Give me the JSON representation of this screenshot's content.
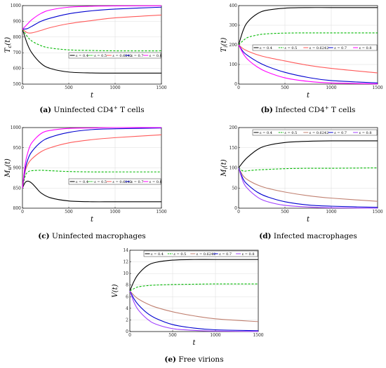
{
  "chart_data": [
    {
      "id": "a",
      "type": "line",
      "caption_letter": "(a)",
      "caption": " Uninfected CD4",
      "caption_sup": "+",
      "caption_tail": " T cells",
      "xlabel": "t",
      "ylabel": "T_c(t)",
      "xlim": [
        0,
        1500
      ],
      "ylim": [
        500,
        1000
      ],
      "xticks": [
        0,
        500,
        1000,
        1500
      ],
      "yticks": [
        500,
        600,
        700,
        800,
        900,
        1000
      ],
      "legend_position": "right",
      "grid": true,
      "series": [
        {
          "name": "ε = 0.4",
          "color": "#000000",
          "dash": "solid",
          "x": [
            0,
            50,
            100,
            200,
            300,
            500,
            750,
            1000,
            1500
          ],
          "y": [
            850,
            760,
            700,
            632,
            600,
            577,
            571,
            570,
            570
          ]
        },
        {
          "name": "ε = 0.5",
          "color": "#00b800",
          "dash": "dashed",
          "x": [
            0,
            50,
            100,
            200,
            300,
            500,
            750,
            1000,
            1500
          ],
          "y": [
            850,
            805,
            775,
            745,
            730,
            718,
            714,
            712,
            712
          ]
        },
        {
          "name": "ε = 0.6242",
          "color": "#ff5a5a",
          "dash": "solid",
          "x": [
            0,
            50,
            100,
            200,
            300,
            500,
            750,
            1000,
            1500
          ],
          "y": [
            850,
            828,
            826,
            842,
            860,
            885,
            905,
            922,
            940
          ]
        },
        {
          "name": "ε = 0.7",
          "color": "#0000d0",
          "dash": "solid",
          "x": [
            0,
            50,
            100,
            200,
            300,
            500,
            750,
            1000,
            1500
          ],
          "y": [
            850,
            853,
            868,
            900,
            920,
            948,
            967,
            978,
            990
          ]
        },
        {
          "name": "ε = 0.8",
          "color": "#ff00ff",
          "dash": "solid",
          "x": [
            0,
            50,
            100,
            200,
            300,
            500,
            750,
            1000,
            1500
          ],
          "y": [
            850,
            880,
            910,
            950,
            972,
            990,
            996,
            998,
            999
          ]
        }
      ]
    },
    {
      "id": "b",
      "type": "line",
      "caption_letter": "(b)",
      "caption": " Infected CD4",
      "caption_sup": "+",
      "caption_tail": " T cells",
      "xlabel": "t",
      "ylabel": "T_i(t)",
      "xlim": [
        0,
        1500
      ],
      "ylim": [
        0,
        400
      ],
      "xticks": [
        0,
        500,
        1000,
        1500
      ],
      "yticks": [
        0,
        100,
        200,
        300,
        400
      ],
      "legend_position": "middle",
      "grid": true,
      "series": [
        {
          "name": "ε = 0.4",
          "color": "#000000",
          "dash": "solid",
          "x": [
            0,
            50,
            100,
            200,
            300,
            500,
            750,
            1000,
            1500
          ],
          "y": [
            200,
            275,
            318,
            358,
            376,
            387,
            390,
            390,
            390
          ]
        },
        {
          "name": "ε = 0.5",
          "color": "#00b800",
          "dash": "dashed",
          "x": [
            0,
            50,
            100,
            200,
            300,
            500,
            750,
            1000,
            1500
          ],
          "y": [
            200,
            222,
            238,
            250,
            256,
            260,
            261,
            261,
            261
          ]
        },
        {
          "name": "ε = 0.6242",
          "color": "#ff5a5a",
          "dash": "solid",
          "x": [
            0,
            50,
            100,
            200,
            300,
            500,
            750,
            1000,
            1500
          ],
          "y": [
            200,
            180,
            168,
            150,
            137,
            118,
            96,
            80,
            57
          ]
        },
        {
          "name": "ε = 0.7",
          "color": "#0000d0",
          "dash": "solid",
          "x": [
            0,
            50,
            100,
            200,
            300,
            500,
            750,
            1000,
            1500
          ],
          "y": [
            200,
            165,
            145,
            115,
            92,
            60,
            34,
            18,
            6
          ]
        },
        {
          "name": "ε = 0.8",
          "color": "#ff00ff",
          "dash": "solid",
          "x": [
            0,
            50,
            100,
            200,
            300,
            500,
            750,
            1000,
            1500
          ],
          "y": [
            200,
            155,
            125,
            88,
            63,
            32,
            14,
            6,
            1
          ]
        }
      ]
    },
    {
      "id": "c",
      "type": "line",
      "caption_letter": "(c)",
      "caption": " Uninfected macrophages",
      "caption_sup": "",
      "caption_tail": "",
      "xlabel": "t",
      "ylabel": "M_u(t)",
      "xlim": [
        0,
        1500
      ],
      "ylim": [
        800,
        1000
      ],
      "xticks": [
        0,
        500,
        1000,
        1500
      ],
      "yticks": [
        800,
        850,
        900,
        950,
        1000
      ],
      "legend_position": "right",
      "grid": true,
      "series": [
        {
          "name": "ε = 0.4",
          "color": "#000000",
          "dash": "solid",
          "x": [
            0,
            30,
            60,
            100,
            150,
            200,
            300,
            500,
            750,
            1000,
            1500
          ],
          "y": [
            850,
            864,
            867,
            862,
            850,
            838,
            826,
            818,
            816,
            816,
            816
          ]
        },
        {
          "name": "ε = 0.5",
          "color": "#00b800",
          "dash": "dashed",
          "x": [
            0,
            30,
            60,
            100,
            200,
            300,
            500,
            750,
            1000,
            1500
          ],
          "y": [
            850,
            880,
            890,
            893,
            894,
            893,
            891,
            890,
            890,
            890
          ]
        },
        {
          "name": "ε = 0.6242",
          "color": "#ff5a5a",
          "dash": "solid",
          "x": [
            0,
            30,
            60,
            100,
            200,
            300,
            500,
            750,
            1000,
            1500
          ],
          "y": [
            850,
            892,
            910,
            922,
            940,
            950,
            962,
            970,
            975,
            982
          ]
        },
        {
          "name": "ε = 0.7",
          "color": "#0000d0",
          "dash": "solid",
          "x": [
            0,
            30,
            60,
            100,
            200,
            300,
            500,
            750,
            1000,
            1500
          ],
          "y": [
            850,
            898,
            922,
            940,
            964,
            976,
            988,
            995,
            997,
            999
          ]
        },
        {
          "name": "ε = 0.8",
          "color": "#ff00ff",
          "dash": "solid",
          "x": [
            0,
            30,
            60,
            100,
            200,
            300,
            500,
            750,
            1000,
            1500
          ],
          "y": [
            850,
            910,
            940,
            962,
            985,
            993,
            998,
            999,
            1000,
            1000
          ]
        }
      ]
    },
    {
      "id": "d",
      "type": "line",
      "caption_letter": "(d)",
      "caption": " Infected macrophages",
      "caption_sup": "",
      "caption_tail": "",
      "xlabel": "t",
      "ylabel": "M_i(t)",
      "xlim": [
        0,
        1500
      ],
      "ylim": [
        0,
        200
      ],
      "xticks": [
        0,
        500,
        1000,
        1500
      ],
      "yticks": [
        0,
        50,
        100,
        150,
        200
      ],
      "legend_position": "top",
      "grid": true,
      "series": [
        {
          "name": "ε = 0.4",
          "color": "#000000",
          "dash": "solid",
          "x": [
            0,
            50,
            100,
            200,
            300,
            500,
            750,
            1000,
            1500
          ],
          "y": [
            100,
            115,
            127,
            145,
            155,
            163,
            166,
            167,
            167
          ]
        },
        {
          "name": "ε = 0.5",
          "color": "#00b800",
          "dash": "dashed",
          "x": [
            0,
            50,
            100,
            200,
            300,
            500,
            750,
            1000,
            1500
          ],
          "y": [
            100,
            92,
            93,
            95,
            96,
            98,
            99,
            99,
            100
          ]
        },
        {
          "name": "ε = 0.6242",
          "color": "#c08070",
          "dash": "solid",
          "x": [
            0,
            50,
            100,
            200,
            300,
            500,
            750,
            1000,
            1500
          ],
          "y": [
            100,
            80,
            70,
            58,
            50,
            40,
            31,
            25,
            17
          ]
        },
        {
          "name": "ε = 0.7",
          "color": "#0000d0",
          "dash": "solid",
          "x": [
            0,
            50,
            100,
            200,
            300,
            500,
            750,
            1000,
            1500
          ],
          "y": [
            100,
            72,
            58,
            40,
            29,
            16,
            8,
            5,
            2
          ]
        },
        {
          "name": "ε = 0.8",
          "color": "#a040ff",
          "dash": "solid",
          "x": [
            0,
            50,
            100,
            200,
            300,
            500,
            750,
            1000,
            1500
          ],
          "y": [
            100,
            65,
            48,
            28,
            17,
            7,
            3,
            1,
            0
          ]
        }
      ]
    },
    {
      "id": "e",
      "type": "line",
      "caption_letter": "(e)",
      "caption": " Free virions",
      "caption_sup": "",
      "caption_tail": "",
      "xlabel": "t",
      "ylabel": "V(t)",
      "xlim": [
        0,
        1500
      ],
      "ylim": [
        0,
        14
      ],
      "xticks": [
        0,
        500,
        1000,
        1500
      ],
      "yticks": [
        0,
        2,
        4,
        6,
        8,
        10,
        12,
        14
      ],
      "legend_position": "top",
      "grid": true,
      "series": [
        {
          "name": "ε = 0.4",
          "color": "#000000",
          "dash": "solid",
          "x": [
            0,
            50,
            100,
            200,
            300,
            500,
            750,
            1000,
            1500
          ],
          "y": [
            7,
            8.7,
            9.9,
            11.3,
            11.9,
            12.3,
            12.4,
            12.4,
            12.4
          ]
        },
        {
          "name": "ε = 0.5",
          "color": "#00b800",
          "dash": "dashed",
          "x": [
            0,
            50,
            100,
            200,
            300,
            500,
            750,
            1000,
            1500
          ],
          "y": [
            7,
            7.4,
            7.7,
            7.9,
            8.0,
            8.1,
            8.15,
            8.2,
            8.2
          ]
        },
        {
          "name": "ε = 0.6242",
          "color": "#c08070",
          "dash": "solid",
          "x": [
            0,
            50,
            100,
            200,
            300,
            500,
            750,
            1000,
            1500
          ],
          "y": [
            7,
            6.2,
            5.6,
            4.8,
            4.2,
            3.4,
            2.7,
            2.2,
            1.7
          ]
        },
        {
          "name": "ε = 0.7",
          "color": "#0000d0",
          "dash": "solid",
          "x": [
            0,
            50,
            100,
            200,
            300,
            500,
            750,
            1000,
            1500
          ],
          "y": [
            7,
            5.6,
            4.6,
            3.2,
            2.3,
            1.2,
            0.6,
            0.3,
            0.15
          ]
        },
        {
          "name": "ε = 0.8",
          "color": "#a040ff",
          "dash": "solid",
          "x": [
            0,
            50,
            100,
            200,
            300,
            500,
            750,
            1000,
            1500
          ],
          "y": [
            7,
            5.0,
            3.7,
            2.2,
            1.3,
            0.5,
            0.2,
            0.08,
            0.02
          ]
        }
      ]
    }
  ]
}
